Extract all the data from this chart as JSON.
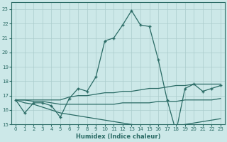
{
  "xlabel": "Humidex (Indice chaleur)",
  "bg_color": "#cce8e8",
  "grid_color": "#aacccc",
  "line_color": "#2a6b65",
  "xlim": [
    -0.5,
    23.5
  ],
  "ylim": [
    15,
    23.5
  ],
  "xticks": [
    0,
    1,
    2,
    3,
    4,
    5,
    6,
    7,
    8,
    9,
    10,
    11,
    12,
    13,
    14,
    15,
    16,
    17,
    18,
    19,
    20,
    21,
    22,
    23
  ],
  "yticks": [
    15,
    16,
    17,
    18,
    19,
    20,
    21,
    22,
    23
  ],
  "line_main_x": [
    0,
    1,
    2,
    3,
    4,
    5,
    6,
    7,
    8,
    9,
    10,
    11,
    12,
    13,
    14,
    15,
    16,
    17,
    18,
    19,
    20,
    21,
    22,
    23
  ],
  "line_main_y": [
    16.7,
    15.8,
    16.5,
    16.5,
    16.3,
    15.5,
    16.8,
    17.5,
    17.3,
    18.3,
    20.8,
    21.0,
    21.9,
    22.9,
    21.9,
    21.8,
    19.5,
    16.7,
    14.5,
    17.5,
    17.8,
    17.3,
    17.5,
    17.7
  ],
  "line_a_x": [
    0,
    1,
    2,
    3,
    4,
    5,
    6,
    7,
    8,
    9,
    10,
    11,
    12,
    13,
    14,
    15,
    16,
    17,
    18,
    19,
    20,
    21,
    22,
    23
  ],
  "line_a_y": [
    16.7,
    16.7,
    16.7,
    16.7,
    16.7,
    16.7,
    16.9,
    17.0,
    17.0,
    17.1,
    17.2,
    17.2,
    17.3,
    17.3,
    17.4,
    17.5,
    17.5,
    17.6,
    17.7,
    17.7,
    17.8,
    17.8,
    17.8,
    17.8
  ],
  "line_b_x": [
    0,
    1,
    2,
    3,
    4,
    5,
    6,
    7,
    8,
    9,
    10,
    11,
    12,
    13,
    14,
    15,
    16,
    17,
    18,
    19,
    20,
    21,
    22,
    23
  ],
  "line_b_y": [
    16.7,
    16.7,
    16.6,
    16.6,
    16.5,
    16.4,
    16.4,
    16.4,
    16.4,
    16.4,
    16.4,
    16.4,
    16.5,
    16.5,
    16.5,
    16.5,
    16.6,
    16.6,
    16.6,
    16.7,
    16.7,
    16.7,
    16.7,
    16.8
  ],
  "line_c_x": [
    0,
    1,
    2,
    3,
    4,
    5,
    6,
    7,
    8,
    9,
    10,
    11,
    12,
    13,
    14,
    15,
    16,
    17,
    18,
    19,
    20,
    21,
    22,
    23
  ],
  "line_c_y": [
    16.7,
    16.5,
    16.4,
    16.2,
    16.0,
    15.8,
    15.7,
    15.6,
    15.5,
    15.4,
    15.3,
    15.2,
    15.1,
    15.0,
    14.9,
    14.9,
    14.9,
    14.9,
    14.9,
    15.0,
    15.1,
    15.2,
    15.3,
    15.4
  ]
}
